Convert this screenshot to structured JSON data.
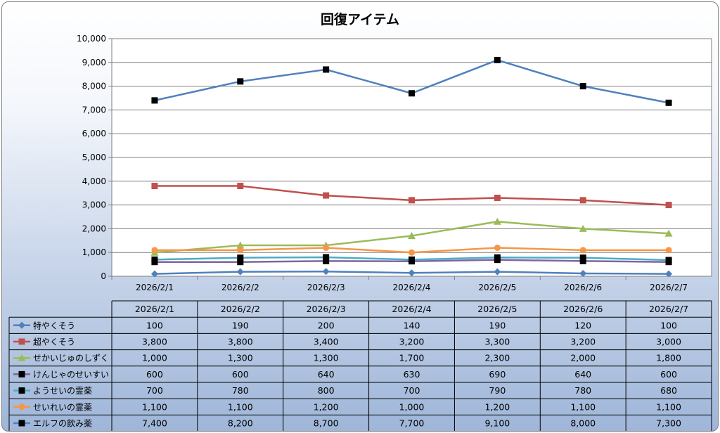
{
  "chart_data": {
    "type": "line",
    "title": "回復アイテム",
    "categories": [
      "2026/2/1",
      "2026/2/2",
      "2026/2/3",
      "2026/2/4",
      "2026/2/5",
      "2026/2/6",
      "2026/2/7"
    ],
    "ylim": [
      0,
      10000
    ],
    "yticks": [
      "0",
      "1,000",
      "2,000",
      "3,000",
      "4,000",
      "5,000",
      "6,000",
      "7,000",
      "8,000",
      "9,000",
      "10,000"
    ],
    "grid": true,
    "legend": "data-table",
    "series": [
      {
        "name": "特やくそう",
        "color": "#4f81bd",
        "marker": "diamond",
        "values": [
          100,
          190,
          200,
          140,
          190,
          120,
          100
        ],
        "labels": [
          "100",
          "190",
          "200",
          "140",
          "190",
          "120",
          "100"
        ]
      },
      {
        "name": "超やくそう",
        "color": "#c0504d",
        "marker": "square",
        "values": [
          3800,
          3800,
          3400,
          3200,
          3300,
          3200,
          3000
        ],
        "labels": [
          "3,800",
          "3,800",
          "3,400",
          "3,200",
          "3,300",
          "3,200",
          "3,000"
        ]
      },
      {
        "name": "せかいじゅのしずく",
        "color": "#9bbb59",
        "marker": "triangle",
        "values": [
          1000,
          1300,
          1300,
          1700,
          2300,
          2000,
          1800
        ],
        "labels": [
          "1,000",
          "1,300",
          "1,300",
          "1,700",
          "2,300",
          "2,000",
          "1,800"
        ]
      },
      {
        "name": "けんじゃのせいすい",
        "color": "#8064a2",
        "marker": "square-black",
        "values": [
          600,
          600,
          640,
          630,
          690,
          640,
          600
        ],
        "labels": [
          "600",
          "600",
          "640",
          "630",
          "690",
          "640",
          "600"
        ]
      },
      {
        "name": "ようせいの霊薬",
        "color": "#4bacc6",
        "marker": "square-black",
        "values": [
          700,
          780,
          800,
          700,
          790,
          780,
          680
        ],
        "labels": [
          "700",
          "780",
          "800",
          "700",
          "790",
          "780",
          "680"
        ]
      },
      {
        "name": "せいれいの霊薬",
        "color": "#f79646",
        "marker": "circle",
        "values": [
          1100,
          1100,
          1200,
          1000,
          1200,
          1100,
          1100
        ],
        "labels": [
          "1,100",
          "1,100",
          "1,200",
          "1,000",
          "1,200",
          "1,100",
          "1,100"
        ]
      },
      {
        "name": "エルフの飲み薬",
        "color": "#4f81bd",
        "marker": "square-black",
        "values": [
          7400,
          8200,
          8700,
          7700,
          9100,
          8000,
          7300
        ],
        "labels": [
          "7,400",
          "8,200",
          "8,700",
          "7,700",
          "9,100",
          "8,000",
          "7,300"
        ]
      }
    ]
  }
}
